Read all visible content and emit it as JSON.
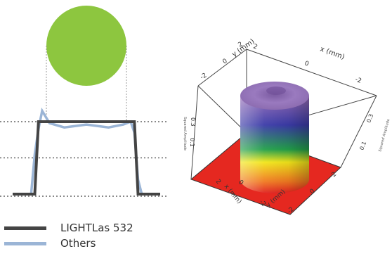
{
  "chart_data": [
    {
      "type": "line",
      "title": "",
      "xlabel": "",
      "ylabel": "",
      "x": [
        -1.0,
        -0.85,
        -0.75,
        -0.7,
        -0.65,
        -0.6,
        -0.5,
        -0.3,
        0.0,
        0.3,
        0.5,
        0.6,
        0.65,
        0.7,
        0.75,
        0.85,
        1.0
      ],
      "series": [
        {
          "name": "LIGHTLas 532",
          "color": "#444444",
          "values": [
            0.0,
            0.0,
            0.0,
            0.0,
            1.0,
            1.0,
            1.0,
            1.0,
            1.0,
            1.0,
            1.0,
            1.0,
            1.0,
            0.0,
            0.0,
            0.0,
            0.0
          ]
        },
        {
          "name": "Others",
          "color": "#9bb5d6",
          "values": [
            0.0,
            0.0,
            0.0,
            0.55,
            0.9,
            1.15,
            0.98,
            0.92,
            0.96,
            0.92,
            0.96,
            1.0,
            0.85,
            0.2,
            0.0,
            0.0,
            0.0
          ]
        }
      ],
      "grid": "dotted horizontal",
      "spot_color": "#8dc63f"
    },
    {
      "type": "surface3d",
      "title": "",
      "x_axis": {
        "label": "x (mm)",
        "ticks": [
          "-2",
          "0",
          "2"
        ]
      },
      "y_axis": {
        "label": "y (mm)",
        "ticks": [
          "-2",
          "0",
          "2"
        ]
      },
      "z_axis": {
        "label": "Squared Amplitude",
        "ticks": [
          "0.1",
          "0.3"
        ]
      },
      "colormap": [
        "#e02020",
        "#f07820",
        "#f2e61a",
        "#22a04a",
        "#3b3ba8",
        "#9a6fb8"
      ]
    }
  ]
}
